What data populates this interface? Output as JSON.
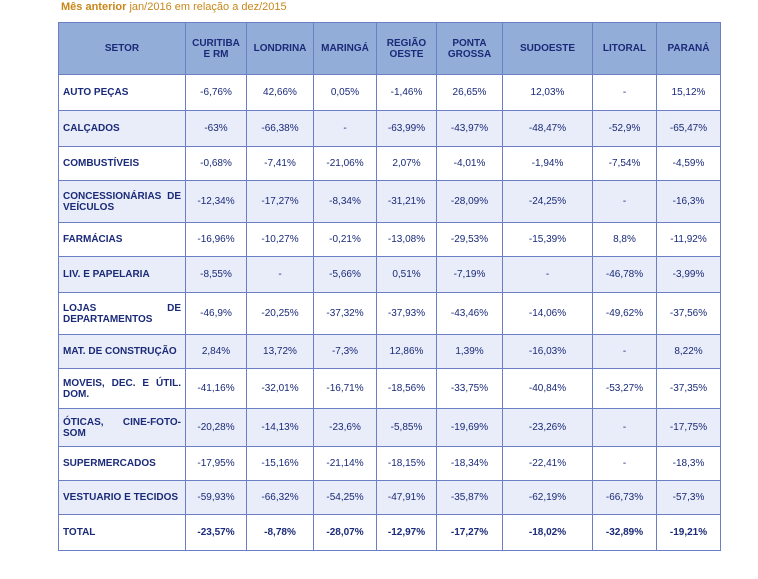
{
  "subtitle": {
    "bold": "Mês anterior",
    "rest": " jan/2016 em relação a dez/2015"
  },
  "headers": [
    "SETOR",
    "CURITIBA\nE RM",
    "LONDRINA",
    "MARINGÁ",
    "REGIÃO\nOESTE",
    "PONTA\nGROSSA",
    "SUDOESTE",
    "LITORAL",
    "PARANÁ"
  ],
  "rows": [
    {
      "setor": "AUTO PEÇAS",
      "values": [
        "-6,76%",
        "42,66%",
        "0,05%",
        "-1,46%",
        "26,65%",
        "12,03%",
        "-",
        "15,12%"
      ]
    },
    {
      "setor": "CALÇADOS",
      "values": [
        "-63%",
        "-66,38%",
        "-",
        "-63,99%",
        "-43,97%",
        "-48,47%",
        "-52,9%",
        "-65,47%"
      ]
    },
    {
      "setor": "COMBUSTÍVEIS",
      "values": [
        "-0,68%",
        "-7,41%",
        "-21,06%",
        "2,07%",
        "-4,01%",
        "-1,94%",
        "-7,54%",
        "-4,59%"
      ]
    },
    {
      "setor": "CONCESSIONÁRIAS DE VEÍCULOS",
      "values": [
        "-12,34%",
        "-17,27%",
        "-8,34%",
        "-31,21%",
        "-28,09%",
        "-24,25%",
        "-",
        "-16,3%"
      ]
    },
    {
      "setor": "FARMÁCIAS",
      "values": [
        "-16,96%",
        "-10,27%",
        "-0,21%",
        "-13,08%",
        "-29,53%",
        "-15,39%",
        "8,8%",
        "-11,92%"
      ]
    },
    {
      "setor": "LIV. E PAPELARIA",
      "values": [
        "-8,55%",
        "-",
        "-5,66%",
        "0,51%",
        "-7,19%",
        "-",
        "-46,78%",
        "-3,99%"
      ]
    },
    {
      "setor": "LOJAS DE DEPARTAMENTOS",
      "values": [
        "-46,9%",
        "-20,25%",
        "-37,32%",
        "-37,93%",
        "-43,46%",
        "-14,06%",
        "-49,62%",
        "-37,56%"
      ]
    },
    {
      "setor": "MAT. DE CONSTRUÇÃO",
      "values": [
        "2,84%",
        "13,72%",
        "-7,3%",
        "12,86%",
        "1,39%",
        "-16,03%",
        "-",
        "8,22%"
      ]
    },
    {
      "setor": "MOVEIS, DEC. E ÚTIL. DOM.",
      "values": [
        "-41,16%",
        "-32,01%",
        "-16,71%",
        "-18,56%",
        "-33,75%",
        "-40,84%",
        "-53,27%",
        "-37,35%"
      ]
    },
    {
      "setor": "ÓTICAS, CINE-FOTO-SOM",
      "values": [
        "-20,28%",
        "-14,13%",
        "-23,6%",
        "-5,85%",
        "-19,69%",
        "-23,26%",
        "-",
        "-17,75%"
      ]
    },
    {
      "setor": "SUPERMERCADOS",
      "values": [
        "-17,95%",
        "-15,16%",
        "-21,14%",
        "-18,15%",
        "-18,34%",
        "-22,41%",
        "-",
        "-18,3%"
      ]
    },
    {
      "setor": "VESTUARIO E TECIDOS",
      "values": [
        "-59,93%",
        "-66,32%",
        "-54,25%",
        "-47,91%",
        "-35,87%",
        "-62,19%",
        "-66,73%",
        "-57,3%"
      ]
    }
  ],
  "total": {
    "setor": "TOTAL",
    "values": [
      "-23,57%",
      "-8,78%",
      "-28,07%",
      "-12,97%",
      "-17,27%",
      "-18,02%",
      "-32,89%",
      "-19,21%"
    ]
  }
}
